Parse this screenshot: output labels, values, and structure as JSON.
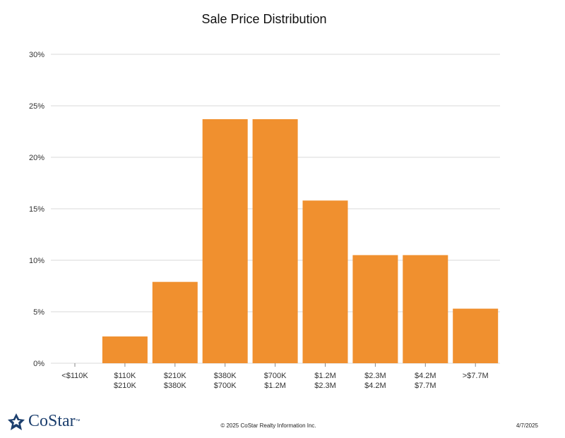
{
  "chart_data": {
    "type": "bar",
    "title": "Sale Price Distribution",
    "categories": [
      [
        "<$110K",
        ""
      ],
      [
        "$110K",
        "$210K"
      ],
      [
        "$210K",
        "$380K"
      ],
      [
        "$380K",
        "$700K"
      ],
      [
        "$700K",
        "$1.2M"
      ],
      [
        "$1.2M",
        "$2.3M"
      ],
      [
        "$2.3M",
        "$4.2M"
      ],
      [
        "$4.2M",
        "$7.7M"
      ],
      [
        ">$7.7M",
        ""
      ]
    ],
    "values": [
      0,
      2.6,
      7.9,
      23.7,
      23.7,
      15.8,
      10.5,
      10.5,
      5.3
    ],
    "yticks": [
      "0%",
      "5%",
      "10%",
      "15%",
      "20%",
      "25%",
      "30%"
    ],
    "ylim": [
      0,
      30
    ],
    "bar_color": "#f0902f",
    "grid": true
  },
  "footer": {
    "logo_text": "CoStar",
    "logo_tm": "™",
    "copyright": "© 2025 CoStar Realty Information Inc.",
    "date": "4/7/2025"
  }
}
